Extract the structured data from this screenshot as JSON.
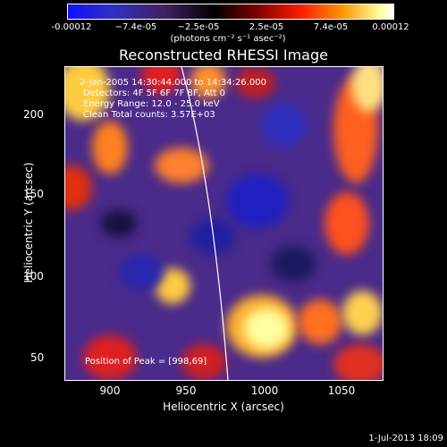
{
  "colorbar": {
    "ticks": [
      "-0.00012",
      "−7.4e-05",
      "−2.5e-05",
      "2.5e-05",
      "7.4e-05",
      "0.00012"
    ],
    "unit": "(photons cm⁻² s⁻¹ asec⁻²)"
  },
  "title": "Reconstructed RHESSI Image",
  "info": {
    "line1": "2-Jan-2005 14:30:44.000 to 14:34:26.000",
    "line2": "Detectors: 4F 5F 6F 7F 8F, Att 0",
    "line3": "Energy Range: 12.0 - 25.0 keV",
    "line4": "Clean     Total counts: 3.57E+03"
  },
  "peak": "Position of Peak = [998,69]",
  "axes": {
    "xlabel": "Heliocentric X (arcsec)",
    "ylabel": "Heliocentric Y (arcsec)",
    "xticks": [
      "900",
      "950",
      "1000",
      "1050"
    ],
    "yticks": [
      "200",
      "150",
      "100",
      "50"
    ]
  },
  "stamp": "1-Jul-2013 18:09"
}
